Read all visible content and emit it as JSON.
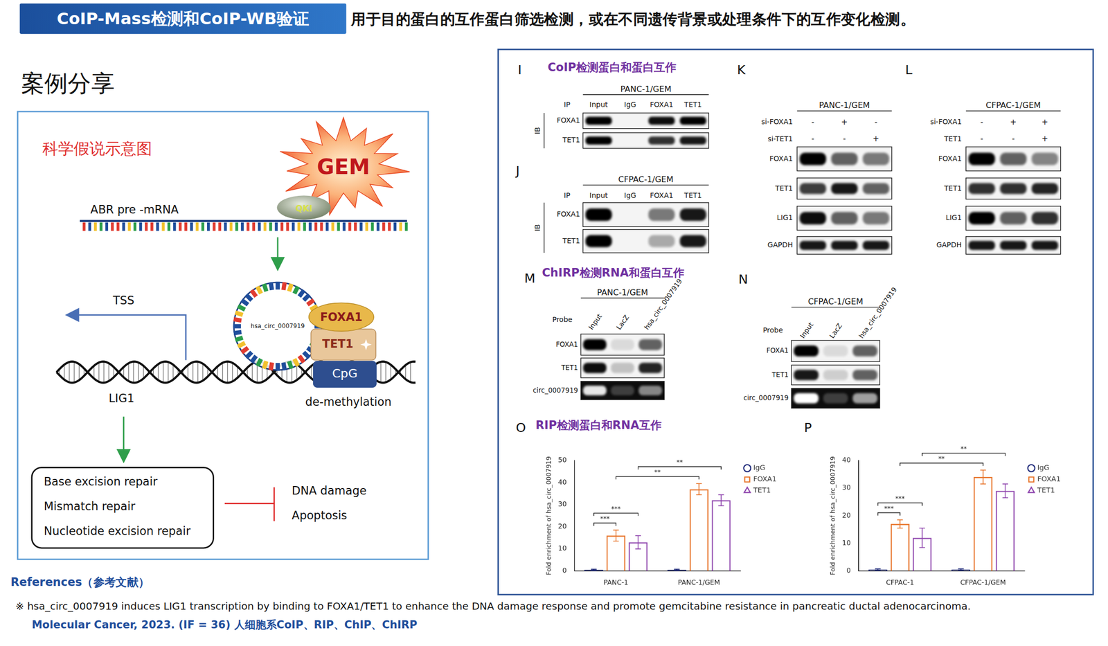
{
  "header": {
    "badge": "CoIP-Mass检测和CoIP-WB验证",
    "description": "用于目的蛋白的互作蛋白筛选检测，或在不同遗传背景或处理条件下的互作变化检测。"
  },
  "section_title": "案例分享",
  "hypothesis": {
    "title": "科学假说示意图",
    "stimulus": "GEM",
    "rbp": "QKI",
    "pre_mrna": "ABR pre -mRNA",
    "circrna": "hsa_circ_0007919",
    "proteins": [
      "FOXA1",
      "TET1"
    ],
    "cpg": "CpG",
    "tss": "TSS",
    "gene": "LIG1",
    "process": "de-methylation",
    "pathways": [
      "Base excision repair",
      "Mismatch repair",
      "Nucleotide excision repair"
    ],
    "outcomes": [
      "DNA damage",
      "Apoptosis"
    ]
  },
  "panels": {
    "I": {
      "label": "I",
      "title": "CoIP检测蛋白和蛋白互作",
      "cell_line": "PANC-1/GEM",
      "header_label": "IP",
      "lanes": [
        "Input",
        "IgG",
        "FOXA1",
        "TET1"
      ],
      "side_label": "IB",
      "rows": [
        {
          "name": "FOXA1",
          "bands": [
            1.0,
            0,
            0.95,
            1.0
          ]
        },
        {
          "name": "TET1",
          "bands": [
            1.0,
            0,
            0.8,
            0.9
          ]
        }
      ]
    },
    "J": {
      "label": "J",
      "cell_line": "CFPAC-1/GEM",
      "header_label": "IP",
      "lanes": [
        "Input",
        "IgG",
        "FOXA1",
        "TET1"
      ],
      "side_label": "IB",
      "rows": [
        {
          "name": "FOXA1",
          "bands": [
            1.0,
            0,
            0.5,
            0.9
          ]
        },
        {
          "name": "TET1",
          "bands": [
            1.0,
            0,
            0.3,
            0.9
          ]
        }
      ]
    },
    "K": {
      "label": "K",
      "cell_line": "PANC-1/GEM",
      "conditions": [
        {
          "name": "si-FOXA1",
          "marks": [
            "-",
            "+",
            "-"
          ]
        },
        {
          "name": "si-TET1",
          "marks": [
            "-",
            "-",
            "+"
          ]
        }
      ],
      "rows": [
        {
          "name": "FOXA1",
          "bands": [
            1.0,
            0.6,
            0.5
          ]
        },
        {
          "name": "TET1",
          "bands": [
            0.75,
            0.9,
            0.6
          ]
        },
        {
          "name": "LIG1",
          "bands": [
            0.95,
            0.6,
            0.5
          ]
        },
        {
          "name": "GAPDH",
          "bands": [
            0.9,
            0.9,
            0.9
          ]
        }
      ]
    },
    "L": {
      "label": "L",
      "cell_line": "CFPAC-1/GEM",
      "conditions": [
        {
          "name": "si-FOXA1",
          "marks": [
            "-",
            "+",
            "+"
          ]
        },
        {
          "name": "TET1",
          "marks": [
            "-",
            "-",
            "+"
          ]
        }
      ],
      "rows": [
        {
          "name": "FOXA1",
          "bands": [
            1.0,
            0.6,
            0.45
          ]
        },
        {
          "name": "TET1",
          "bands": [
            0.8,
            0.8,
            0.85
          ]
        },
        {
          "name": "LIG1",
          "bands": [
            1.0,
            0.6,
            0.8
          ]
        },
        {
          "name": "GAPDH",
          "bands": [
            0.9,
            0.9,
            0.9
          ]
        }
      ]
    },
    "M": {
      "label": "M",
      "title": "ChIRP检测RNA和蛋白互作",
      "cell_line": "PANC-1/GEM",
      "header_label": "Probe",
      "lanes": [
        "Input",
        "LacZ",
        "hsa_circ_0007919"
      ],
      "rows": [
        {
          "name": "FOXA1",
          "bands": [
            1.0,
            0.1,
            0.6
          ]
        },
        {
          "name": "TET1",
          "bands": [
            0.95,
            0.2,
            0.85
          ]
        },
        {
          "name": "circ_0007919",
          "bands": [
            0.9,
            0.2,
            0.5
          ],
          "gel": true
        }
      ]
    },
    "N": {
      "label": "N",
      "cell_line": "CFPAC-1/GEM",
      "header_label": "Probe",
      "lanes": [
        "Input",
        "LacZ",
        "hsa_circ_0007919"
      ],
      "rows": [
        {
          "name": "FOXA1",
          "bands": [
            1.0,
            0.1,
            0.6
          ]
        },
        {
          "name": "TET1",
          "bands": [
            0.9,
            0.15,
            0.6
          ]
        },
        {
          "name": "circ_0007919",
          "bands": [
            1.0,
            0.2,
            0.6
          ],
          "gel": true
        }
      ]
    }
  },
  "chart_data": [
    {
      "type": "bar",
      "label": "O",
      "title": "RIP检测蛋白和RNA互作",
      "y_label": "Fold enrichment of hsa_circ_0007919",
      "categories": [
        "PANC-1",
        "PANC-1/GEM"
      ],
      "series": [
        {
          "name": "IgG",
          "color": "#1f2a7a",
          "marker": "circle",
          "values": [
            0.5,
            0.5
          ],
          "errors": [
            0.3,
            0.3
          ]
        },
        {
          "name": "FOXA1",
          "color": "#e8762d",
          "marker": "square",
          "values": [
            16,
            37
          ],
          "errors": [
            2.5,
            2.5
          ]
        },
        {
          "name": "TET1",
          "color": "#8e44ad",
          "marker": "triangle",
          "values": [
            13,
            32
          ],
          "errors": [
            3,
            2.5
          ]
        }
      ],
      "ylim": [
        0,
        50
      ],
      "yticks": [
        0,
        10,
        20,
        30,
        40,
        50
      ],
      "grid": false,
      "legend": "right",
      "significance": [
        {
          "text": "***",
          "from": {
            "category": "PANC-1",
            "series": "IgG"
          },
          "to": {
            "category": "PANC-1",
            "series": "FOXA1"
          }
        },
        {
          "text": "***",
          "from": {
            "category": "PANC-1",
            "series": "IgG"
          },
          "to": {
            "category": "PANC-1",
            "series": "TET1"
          }
        },
        {
          "text": "**",
          "from": {
            "category": "PANC-1",
            "series": "FOXA1"
          },
          "to": {
            "category": "PANC-1/GEM",
            "series": "FOXA1"
          }
        },
        {
          "text": "**",
          "from": {
            "category": "PANC-1",
            "series": "TET1"
          },
          "to": {
            "category": "PANC-1/GEM",
            "series": "TET1"
          }
        }
      ]
    },
    {
      "type": "bar",
      "label": "P",
      "y_label": "Fold enrichment of hsa_circ_0007919",
      "categories": [
        "CFPAC-1",
        "CFPAC-1/GEM"
      ],
      "series": [
        {
          "name": "IgG",
          "color": "#1f2a7a",
          "marker": "circle",
          "values": [
            0.5,
            0.5
          ],
          "errors": [
            0.3,
            0.3
          ]
        },
        {
          "name": "FOXA1",
          "color": "#e8762d",
          "marker": "square",
          "values": [
            17,
            34
          ],
          "errors": [
            1.5,
            2.5
          ]
        },
        {
          "name": "TET1",
          "color": "#8e44ad",
          "marker": "triangle",
          "values": [
            12,
            29
          ],
          "errors": [
            3.5,
            2.5
          ]
        }
      ],
      "ylim": [
        0,
        40
      ],
      "yticks": [
        0,
        10,
        20,
        30,
        40
      ],
      "grid": false,
      "legend": "right",
      "significance": [
        {
          "text": "***",
          "from": {
            "category": "CFPAC-1",
            "series": "IgG"
          },
          "to": {
            "category": "CFPAC-1",
            "series": "FOXA1"
          }
        },
        {
          "text": "***",
          "from": {
            "category": "CFPAC-1",
            "series": "IgG"
          },
          "to": {
            "category": "CFPAC-1",
            "series": "TET1"
          }
        },
        {
          "text": "**",
          "from": {
            "category": "CFPAC-1",
            "series": "FOXA1"
          },
          "to": {
            "category": "CFPAC-1/GEM",
            "series": "FOXA1"
          }
        },
        {
          "text": "**",
          "from": {
            "category": "CFPAC-1",
            "series": "TET1"
          },
          "to": {
            "category": "CFPAC-1/GEM",
            "series": "TET1"
          }
        }
      ]
    }
  ],
  "references": {
    "title": "References（参考文献）",
    "citation": "※ hsa_circ_0007919 induces LIG1 transcription by binding to FOXA1/TET1 to enhance the DNA damage response and promote gemcitabine resistance in pancreatic ductal adenocarcinoma.",
    "journal": "Molecular Cancer, 2023. (IF = 36) 人细胞系CoIP、RIP、ChIP、ChIRP"
  }
}
